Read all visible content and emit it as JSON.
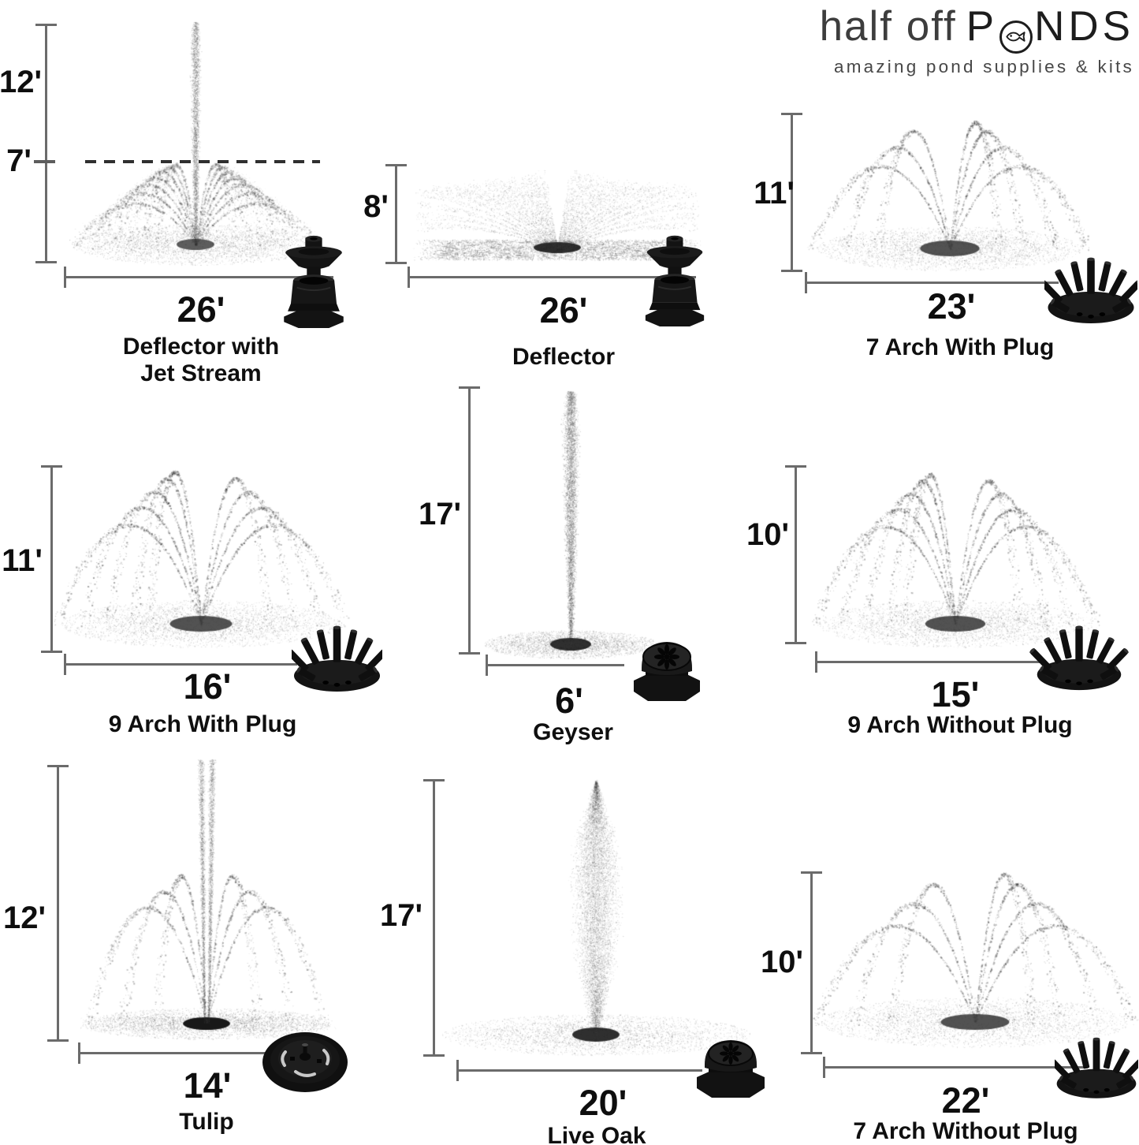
{
  "logo": {
    "word_light": "half off",
    "word_bold_prefix": "P",
    "word_bold_suffix": "NDS",
    "fish_icon": "fish-icon",
    "tagline": "amazing pond supplies & kits"
  },
  "panels": [
    {
      "name": "Deflector with Jet Stream",
      "name_lines": [
        "Deflector with",
        "Jet Stream"
      ],
      "height": "12'",
      "jet_height": "7'",
      "width": "26'",
      "type": "deflector_jet_stream",
      "nozzle_icon": "deflector-nozzle-icon"
    },
    {
      "name": "Deflector",
      "name_lines": [
        "Deflector"
      ],
      "height": "8'",
      "width": "26'",
      "type": "deflector",
      "nozzle_icon": "deflector-nozzle-icon"
    },
    {
      "name": "7 Arch With Plug",
      "name_lines": [
        "7 Arch With Plug"
      ],
      "height": "11'",
      "width": "23'",
      "arch_count": 7,
      "type": "arch",
      "nozzle_icon": "arch-nozzle-icon"
    },
    {
      "name": "9 Arch With Plug",
      "name_lines": [
        "9 Arch With Plug"
      ],
      "height": "11'",
      "width": "16'",
      "arch_count": 9,
      "type": "arch",
      "nozzle_icon": "arch-nozzle-icon"
    },
    {
      "name": "Geyser",
      "name_lines": [
        "Geyser"
      ],
      "height": "17'",
      "width": "6'",
      "type": "geyser",
      "nozzle_icon": "geyser-nozzle-icon"
    },
    {
      "name": "9 Arch Without Plug",
      "name_lines": [
        "9 Arch Without Plug"
      ],
      "height": "10'",
      "width": "15'",
      "arch_count": 9,
      "type": "arch",
      "nozzle_icon": "arch-nozzle-icon"
    },
    {
      "name": "Tulip",
      "name_lines": [
        "Tulip"
      ],
      "height": "12'",
      "width": "14'",
      "type": "tulip",
      "nozzle_icon": "tulip-nozzle-icon"
    },
    {
      "name": "Live Oak",
      "name_lines": [
        "Live Oak"
      ],
      "height": "17'",
      "width": "20'",
      "type": "live_oak",
      "nozzle_icon": "dome-nozzle-icon"
    },
    {
      "name": "7 Arch Without Plug",
      "name_lines": [
        "7 Arch Without Plug"
      ],
      "height": "10'",
      "width": "22'",
      "arch_count": 7,
      "type": "arch",
      "nozzle_icon": "arch-nozzle-icon"
    }
  ],
  "colors": {
    "background": "#ffffff",
    "text": "#111111",
    "dimension_line": "#6b6b6b",
    "dashed_line": "#2f2f2f",
    "spray": "#3a3a3a",
    "nozzle": "#141414"
  }
}
